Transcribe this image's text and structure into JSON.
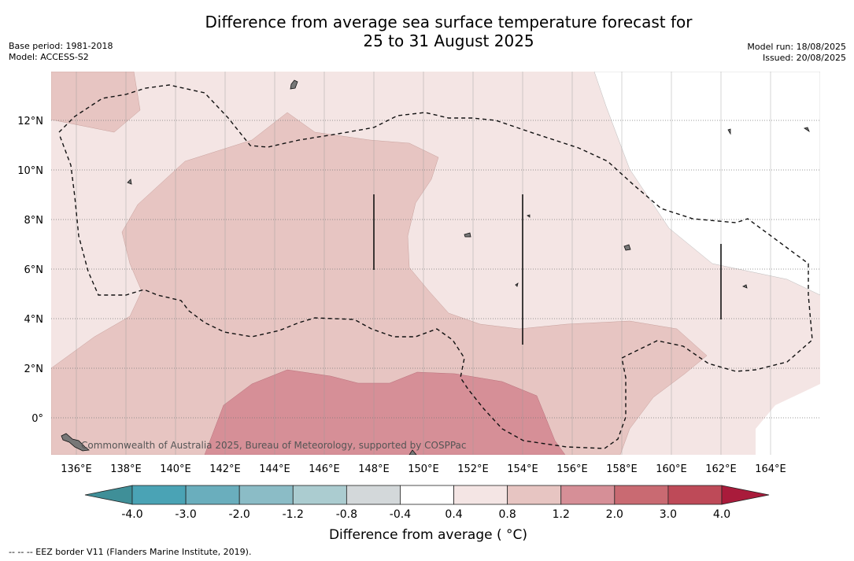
{
  "title": {
    "line1": "Difference from average sea surface temperature forecast for",
    "line2": "25 to 31 August 2025"
  },
  "meta_left": {
    "base_period": "Base period: 1981-2018",
    "model": "Model: ACCESS-S2"
  },
  "meta_right": {
    "model_run": "Model run: 18/08/2025",
    "issued": "Issued: 20/08/2025"
  },
  "map": {
    "lon_ticks": [
      "136°E",
      "138°E",
      "140°E",
      "142°E",
      "144°E",
      "146°E",
      "148°E",
      "150°E",
      "152°E",
      "154°E",
      "156°E",
      "158°E",
      "160°E",
      "162°E",
      "164°E"
    ],
    "lat_ticks": [
      "12°N",
      "10°N",
      "8°N",
      "6°N",
      "4°N",
      "2°N",
      "0°"
    ],
    "copyright": "Commonwealth of Australia 2025, Bureau of Meteorology, supported by COSPPac"
  },
  "colorbar": {
    "label": "Difference from average ( °C)",
    "ticks": [
      "-4.0",
      "-3.0",
      "-2.0",
      "-1.2",
      "-0.8",
      "-0.4",
      "0.4",
      "0.8",
      "1.2",
      "2.0",
      "3.0",
      "4.0"
    ],
    "colors": [
      "#4aa3b5",
      "#6aaebd",
      "#8bbcc6",
      "#abccd0",
      "#d3d8da",
      "#ffffff",
      "#f4e5e4",
      "#e7c5c2",
      "#d68f97",
      "#c96a72",
      "#be4a58"
    ],
    "under_color": "#3f8f98",
    "over_color": "#a91b3b"
  },
  "footnote": "--  --  -- EEZ border V11 (Flanders Marine Institute, 2019)."
}
